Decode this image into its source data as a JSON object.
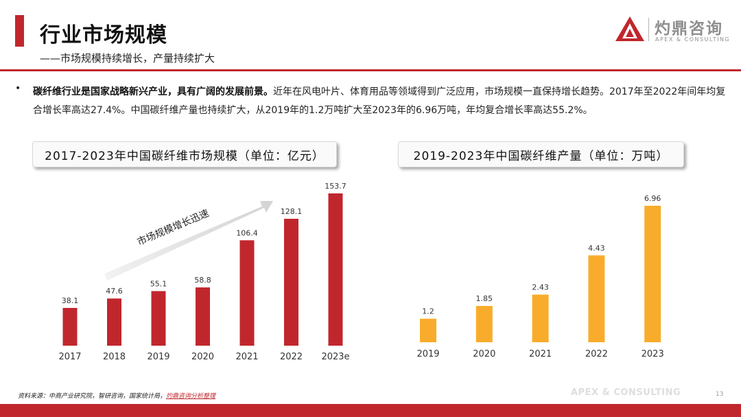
{
  "header": {
    "title": "行业市场规模",
    "subtitle": "——市场规模持续增长，产量持续扩大"
  },
  "logo": {
    "cn": "灼鼎咨询",
    "en": "APEX & CONSULTING"
  },
  "bullet": {
    "bold": "碳纤维行业是国家战略新兴产业，具有广阔的发展前景。",
    "text": "近年在风电叶片、体育用品等领域得到广泛应用，市场规模一直保持增长趋势。2017年至2022年间年均复合增长率高达27.4%。中国碳纤维产量也持续扩大，从2019年的1.2万吨扩大至2023年的6.96万吨，年均复合增长率高达55.2%。"
  },
  "chart_data": [
    {
      "type": "bar",
      "title": "2017-2023年中国碳纤维市场规模（单位：亿元）",
      "categories": [
        "2017",
        "2018",
        "2019",
        "2020",
        "2021",
        "2022",
        "2023e"
      ],
      "values": [
        38.1,
        47.6,
        55.1,
        58.8,
        106.4,
        128.1,
        153.7
      ],
      "labels": [
        "38.1",
        "47.6",
        "55.1",
        "58.8",
        "106.4",
        "128.1",
        "153.7"
      ],
      "annotation": "市场规模增长迅速",
      "ylim": [
        0,
        153.7
      ],
      "color": "#c0272d"
    },
    {
      "type": "bar",
      "title": "2019-2023年中国碳纤维产量（单位：万吨）",
      "categories": [
        "2019",
        "2020",
        "2021",
        "2022",
        "2023"
      ],
      "values": [
        1.2,
        1.85,
        2.43,
        4.43,
        6.96
      ],
      "labels": [
        "1.2",
        "1.85",
        "2.43",
        "4.43",
        "6.96"
      ],
      "ylim": [
        0,
        6.96
      ],
      "color": "#f9ac2b"
    }
  ],
  "footer": {
    "source_prefix": "资料来源：中商产业研究院，智研咨询，国家统计局，",
    "source_highlight": "灼鼎咨询分析整理",
    "watermark": "APEX & CONSULTING",
    "page_number": "13"
  },
  "colors": {
    "accent": "#c0272d",
    "bar2": "#f9ac2b"
  }
}
